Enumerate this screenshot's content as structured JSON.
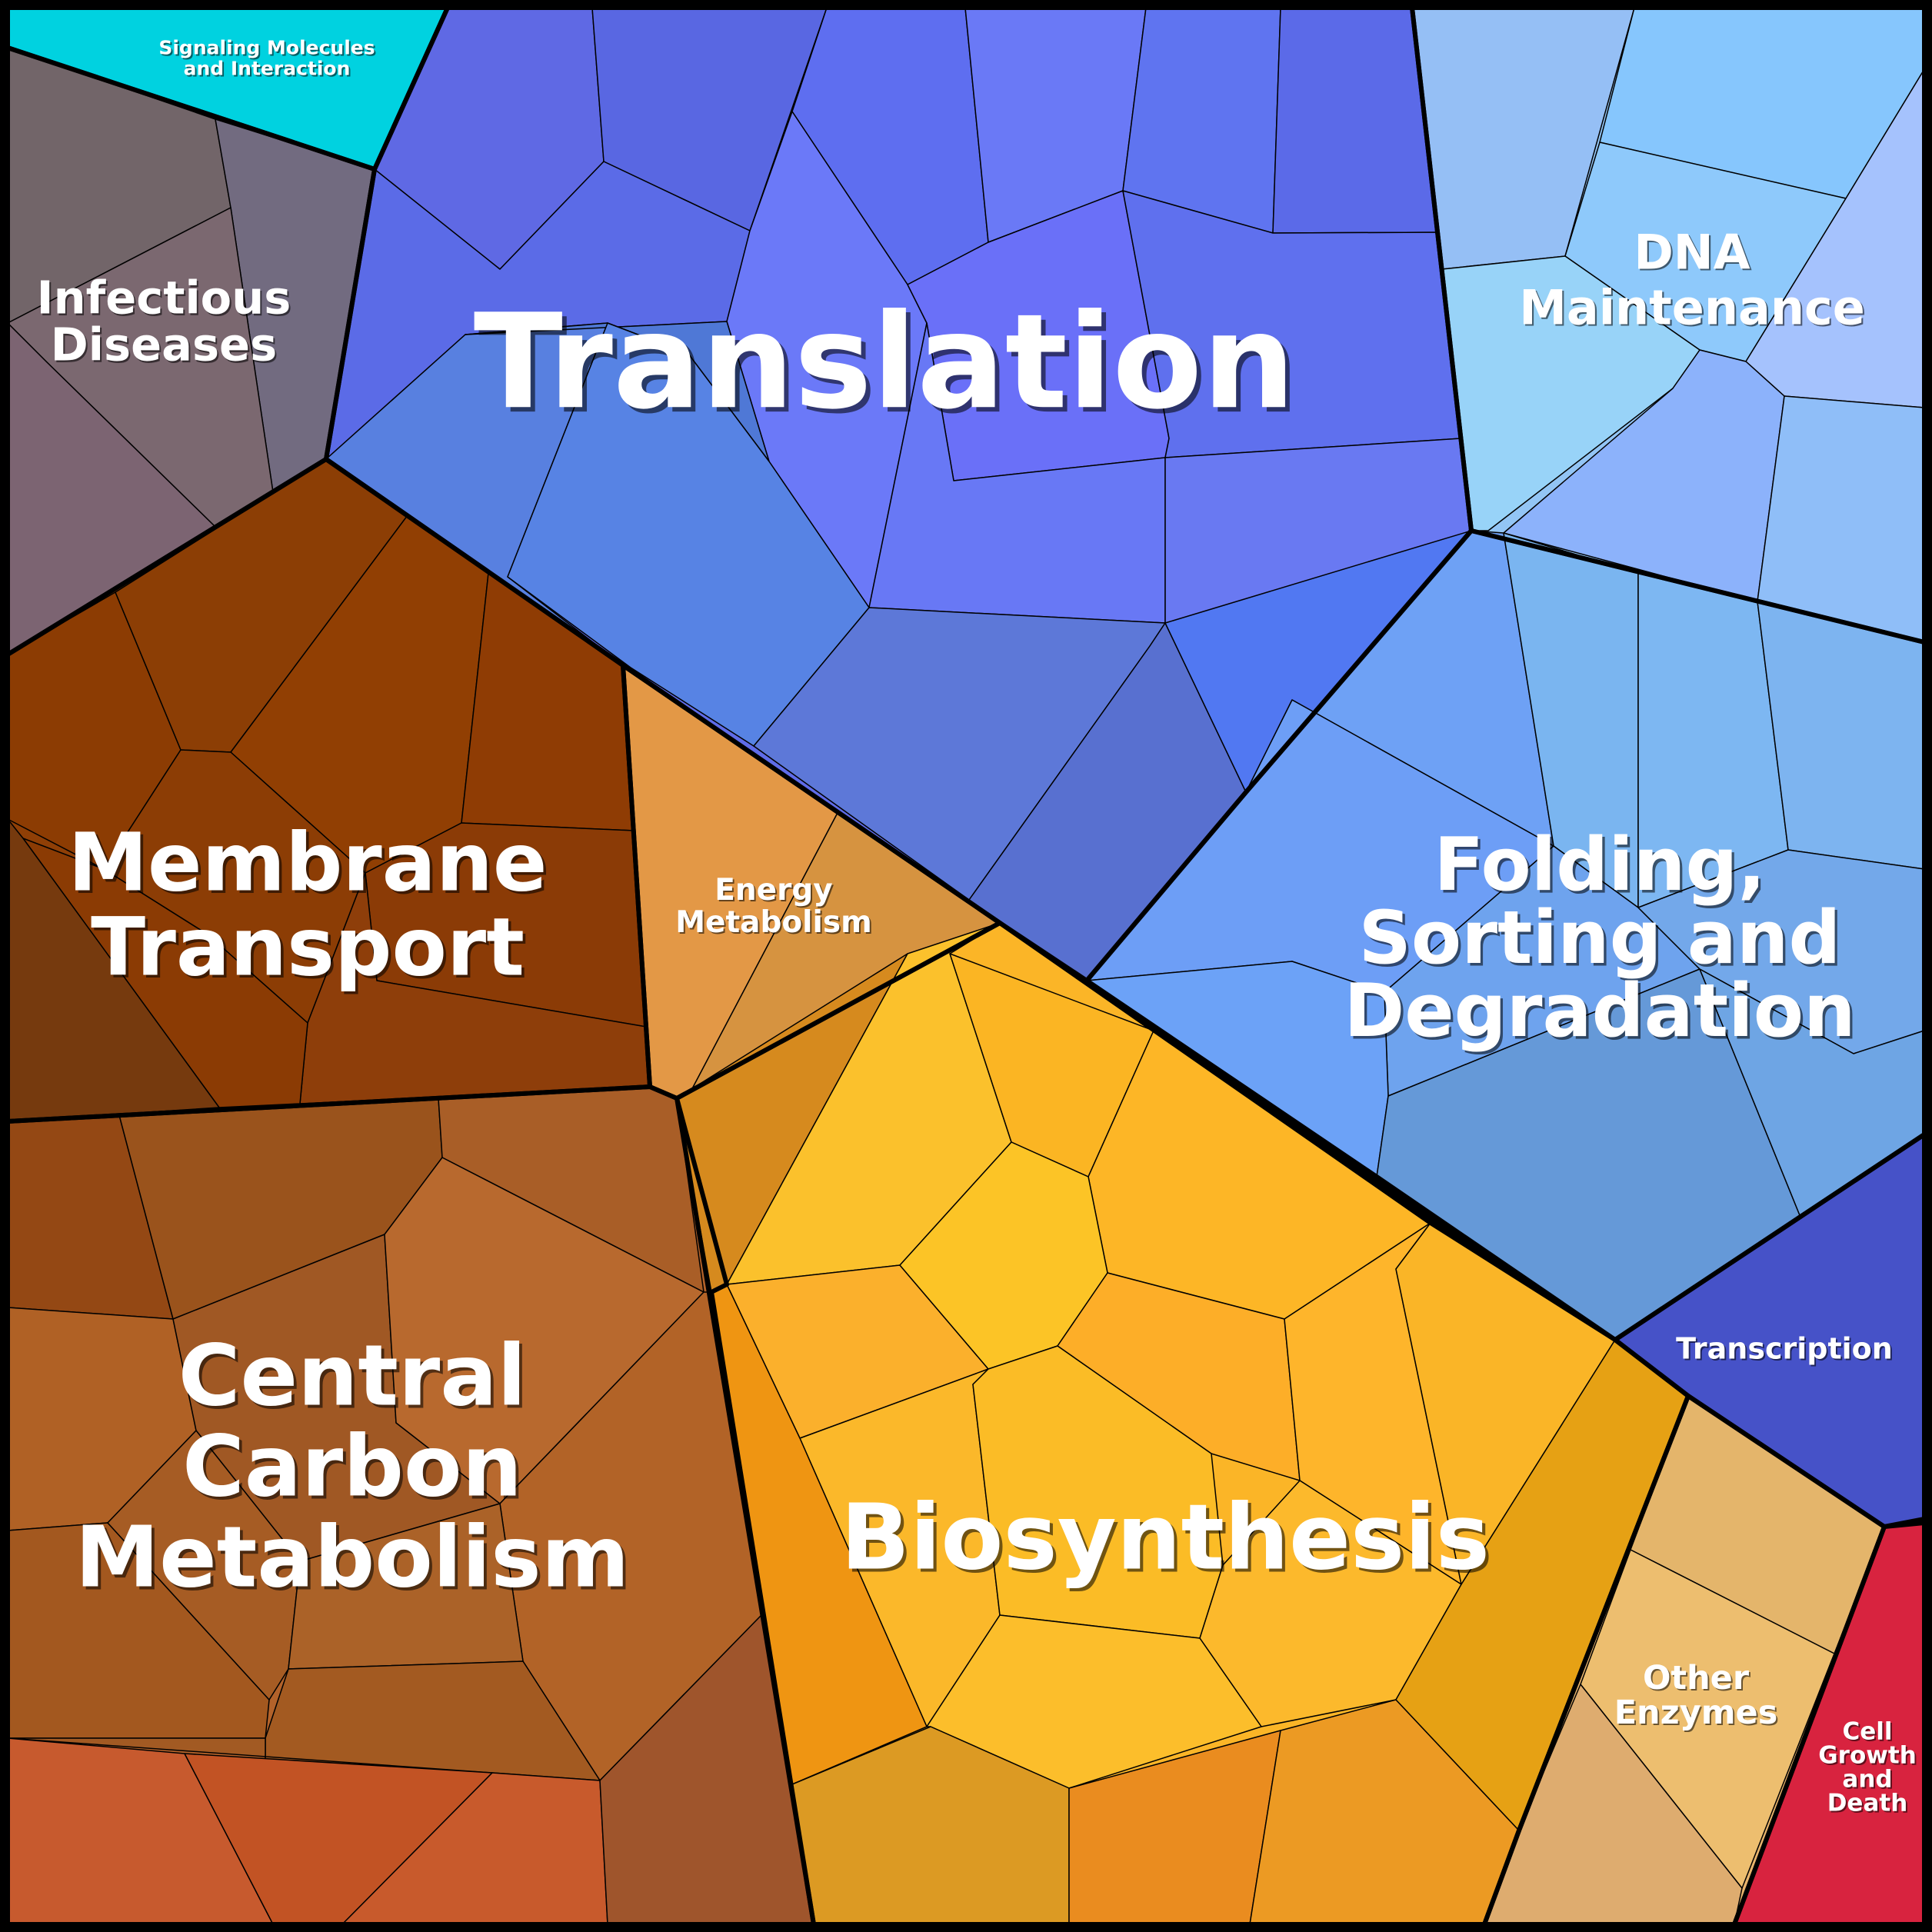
{
  "chart_data": {
    "type": "voronoi-treemap",
    "categories": [
      {
        "id": "signaling",
        "label": [
          "Signaling Molecules",
          "and Interaction"
        ],
        "color": "#00d2e0"
      },
      {
        "id": "infectious",
        "label": [
          "Infectious",
          "Diseases"
        ],
        "color": "#74676f"
      },
      {
        "id": "translation",
        "label": [
          "Translation"
        ],
        "color": "#5f6ce8"
      },
      {
        "id": "dna",
        "label": [
          "DNA",
          "Maintenance"
        ],
        "color": "#93c5f5"
      },
      {
        "id": "membrane",
        "label": [
          "Membrane",
          "Transport"
        ],
        "color": "#8f3f06"
      },
      {
        "id": "energy",
        "label": [
          "Energy",
          "Metabolism"
        ],
        "color": "#e0953e"
      },
      {
        "id": "folding",
        "label": [
          "Folding,",
          "Sorting and",
          "Degradation"
        ],
        "color": "#70a2f0"
      },
      {
        "id": "central",
        "label": [
          "Central",
          "Carbon",
          "Metabolism"
        ],
        "color": "#b3622a"
      },
      {
        "id": "biosynthesis",
        "label": [
          "Biosynthesis"
        ],
        "color": "#fbb527"
      },
      {
        "id": "transcription",
        "label": [
          "Transcription"
        ],
        "color": "#4652c8"
      },
      {
        "id": "other",
        "label": [
          "Other",
          "Enzymes"
        ],
        "color": "#e8b46c"
      },
      {
        "id": "cellgrowth",
        "label": [
          "Cell",
          "Growth",
          "and",
          "Death"
        ],
        "color": "#d8233f"
      }
    ]
  }
}
